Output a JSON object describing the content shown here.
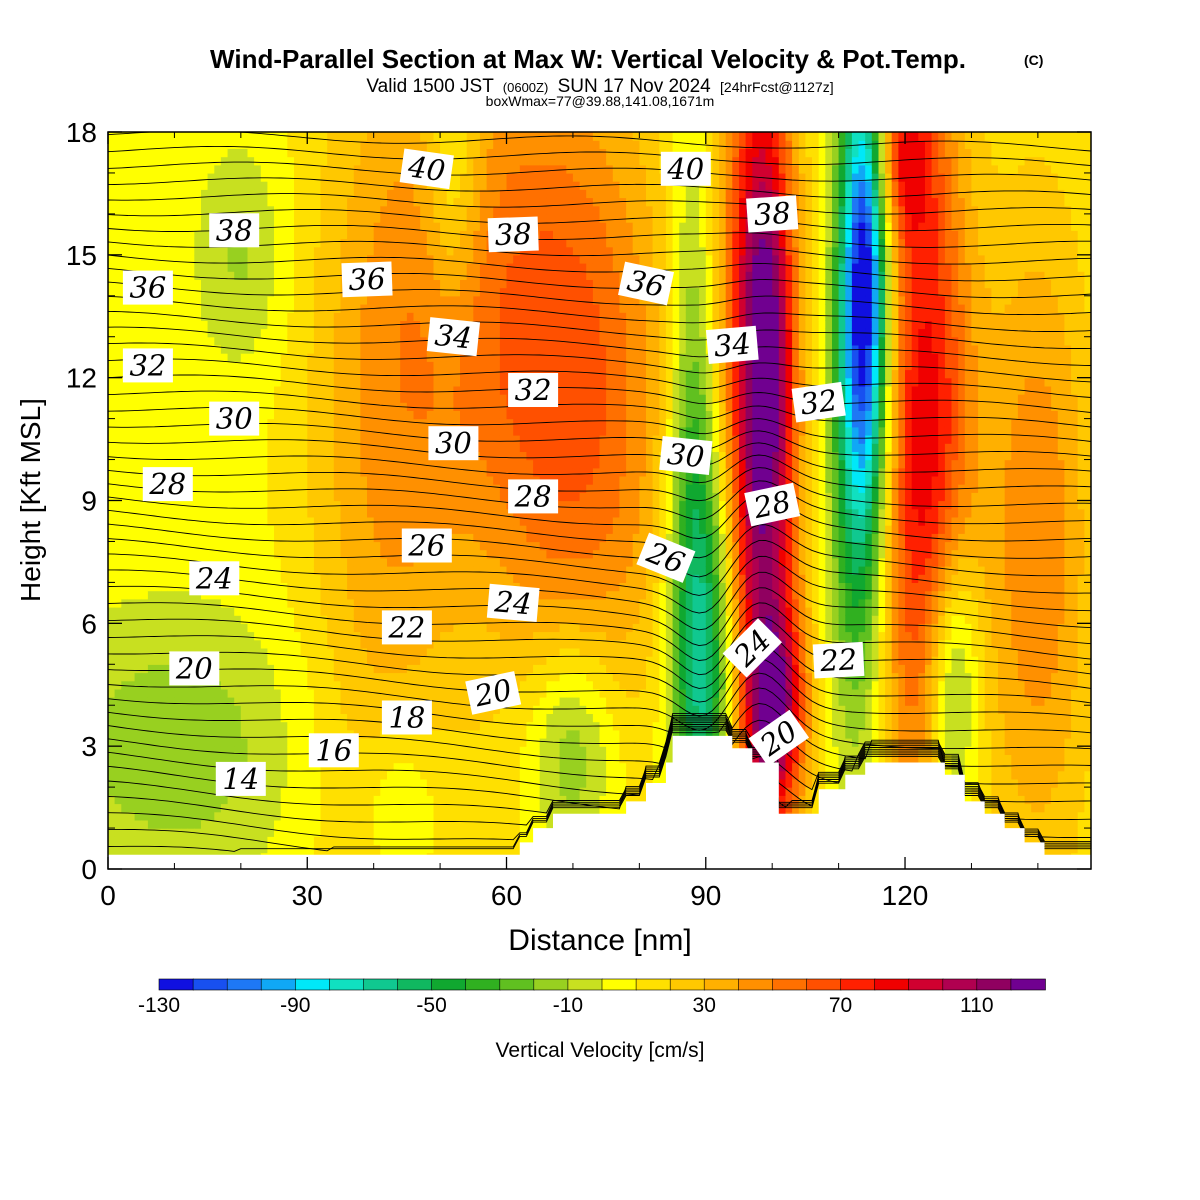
{
  "header": {
    "title_main": "Wind-Parallel Section at Max W: Vertical Velocity & Pot.Temp.",
    "title_copyright": "(C)",
    "valid_prefix": "Valid 1500 JST",
    "valid_utc": "(0600Z)",
    "valid_date": "SUN 17 Nov 2024",
    "valid_fcst": "[24hrFcst@1127z]",
    "box_info": "boxWmax=77@39.88,141.08,1671m"
  },
  "chart_data": {
    "type": "heatmap",
    "xlabel": "Distance [nm]",
    "ylabel": "Height [Kft MSL]",
    "xlim": [
      0,
      148
    ],
    "ylim": [
      0,
      18
    ],
    "x_ticks": [
      0,
      30,
      60,
      90,
      120
    ],
    "y_ticks": [
      0,
      3,
      6,
      9,
      12,
      15,
      18
    ],
    "colorbar": {
      "label": "Vertical Velocity [cm/s]",
      "min": -130,
      "max": 130,
      "step": 10,
      "tick_labels": [
        -130,
        -90,
        -50,
        -10,
        30,
        70,
        110
      ],
      "colors": [
        "#1010e0",
        "#1850f0",
        "#1e78f5",
        "#10a8f5",
        "#00e8f8",
        "#10e0c0",
        "#10c890",
        "#10b860",
        "#10a830",
        "#30b020",
        "#60c020",
        "#98d020",
        "#c8e020",
        "#ffff00",
        "#ffe000",
        "#ffc800",
        "#ffb000",
        "#ff9000",
        "#ff7000",
        "#ff5000",
        "#ff2000",
        "#f00000",
        "#d00030",
        "#b00050",
        "#900060",
        "#700090"
      ]
    },
    "terrain_profile": [
      [
        0,
        0.35
      ],
      [
        62,
        0.35
      ],
      [
        62,
        0.65
      ],
      [
        64,
        0.65
      ],
      [
        64,
        1.0
      ],
      [
        67,
        1.0
      ],
      [
        67,
        1.35
      ],
      [
        78,
        1.35
      ],
      [
        78,
        1.65
      ],
      [
        81,
        1.65
      ],
      [
        81,
        2.1
      ],
      [
        84,
        2.1
      ],
      [
        84,
        2.6
      ],
      [
        85,
        2.6
      ],
      [
        85,
        3.25
      ],
      [
        94,
        3.25
      ],
      [
        94,
        2.95
      ],
      [
        97,
        2.95
      ],
      [
        97,
        2.6
      ],
      [
        101,
        2.6
      ],
      [
        101,
        1.35
      ],
      [
        107,
        1.35
      ],
      [
        107,
        1.95
      ],
      [
        111,
        1.95
      ],
      [
        111,
        2.3
      ],
      [
        114,
        2.3
      ],
      [
        114,
        2.6
      ],
      [
        126,
        2.6
      ],
      [
        126,
        2.3
      ],
      [
        129,
        2.3
      ],
      [
        129,
        1.65
      ],
      [
        132,
        1.65
      ],
      [
        132,
        1.35
      ],
      [
        135,
        1.35
      ],
      [
        135,
        1.0
      ],
      [
        138,
        1.0
      ],
      [
        138,
        0.65
      ],
      [
        141,
        0.65
      ],
      [
        141,
        0.35
      ],
      [
        148,
        0.35
      ]
    ],
    "wind_field": [
      {
        "x": 98,
        "y": 9,
        "sx": 4,
        "sy": 9,
        "w": 110
      },
      {
        "x": 99.5,
        "y": 13,
        "sx": 2.5,
        "sy": 3,
        "w": 40
      },
      {
        "x": 101,
        "y": 4,
        "sx": 3,
        "sy": 1.5,
        "w": 60
      },
      {
        "x": 123,
        "y": 10,
        "sx": 5,
        "sy": 7,
        "w": 80
      },
      {
        "x": 119,
        "y": 17.5,
        "sx": 3.5,
        "sy": 1.5,
        "w": 50
      },
      {
        "x": 56,
        "y": 14,
        "sx": 12,
        "sy": 5,
        "w": 35
      },
      {
        "x": 72,
        "y": 11,
        "sx": 10,
        "sy": 6,
        "w": 45
      },
      {
        "x": 41,
        "y": 9,
        "sx": 8,
        "sy": 8,
        "w": 25
      },
      {
        "x": 140,
        "y": 8,
        "sx": 6,
        "sy": 6,
        "w": 40
      },
      {
        "x": 114,
        "y": 15,
        "sx": 2.5,
        "sy": 4,
        "w": -120
      },
      {
        "x": 113,
        "y": 10,
        "sx": 3,
        "sy": 5,
        "w": -60
      },
      {
        "x": 91,
        "y": 5,
        "sx": 4,
        "sy": 4,
        "w": -70
      },
      {
        "x": 88,
        "y": 10,
        "sx": 2.5,
        "sy": 6,
        "w": -40
      },
      {
        "x": 127,
        "y": 4.5,
        "sx": 3,
        "sy": 2.5,
        "w": -60
      },
      {
        "x": 70,
        "y": 3,
        "sx": 5,
        "sy": 2,
        "w": -40
      },
      {
        "x": 52,
        "y": 17,
        "sx": 3,
        "sy": 2.5,
        "w": -30
      },
      {
        "x": 20,
        "y": 15,
        "sx": 5,
        "sy": 2,
        "w": -20
      },
      {
        "x": 10,
        "y": 3,
        "sx": 14,
        "sy": 2.5,
        "w": -25
      },
      {
        "x": 44,
        "y": 1.5,
        "sx": 4,
        "sy": 1.5,
        "w": -20
      }
    ],
    "theta_labels": [
      {
        "value": "40",
        "x": 48,
        "y": 17.1,
        "rot": 8
      },
      {
        "value": "40",
        "x": 87,
        "y": 17.1,
        "rot": 0
      },
      {
        "value": "38",
        "x": 19,
        "y": 15.6,
        "rot": 0
      },
      {
        "value": "38",
        "x": 61,
        "y": 15.5,
        "rot": -2
      },
      {
        "value": "38",
        "x": 100,
        "y": 16.0,
        "rot": -4
      },
      {
        "value": "36",
        "x": 6,
        "y": 14.2,
        "rot": 0
      },
      {
        "value": "36",
        "x": 39,
        "y": 14.4,
        "rot": -2
      },
      {
        "value": "36",
        "x": 81,
        "y": 14.3,
        "rot": 12
      },
      {
        "value": "34",
        "x": 52,
        "y": 13.0,
        "rot": 6
      },
      {
        "value": "34",
        "x": 94,
        "y": 12.8,
        "rot": -5
      },
      {
        "value": "32",
        "x": 6,
        "y": 12.3,
        "rot": 0
      },
      {
        "value": "32",
        "x": 64,
        "y": 11.7,
        "rot": 0
      },
      {
        "value": "32",
        "x": 107,
        "y": 11.4,
        "rot": -8
      },
      {
        "value": "30",
        "x": 19,
        "y": 11.0,
        "rot": 0
      },
      {
        "value": "30",
        "x": 52,
        "y": 10.4,
        "rot": 0
      },
      {
        "value": "30",
        "x": 87,
        "y": 10.1,
        "rot": 6
      },
      {
        "value": "28",
        "x": 9,
        "y": 9.4,
        "rot": 0
      },
      {
        "value": "28",
        "x": 64,
        "y": 9.1,
        "rot": 0
      },
      {
        "value": "28",
        "x": 100,
        "y": 8.9,
        "rot": -12
      },
      {
        "value": "26",
        "x": 48,
        "y": 7.9,
        "rot": 0
      },
      {
        "value": "26",
        "x": 84,
        "y": 7.6,
        "rot": 22
      },
      {
        "value": "24",
        "x": 16,
        "y": 7.1,
        "rot": 0
      },
      {
        "value": "24",
        "x": 61,
        "y": 6.5,
        "rot": 5
      },
      {
        "value": "24",
        "x": 97,
        "y": 5.4,
        "rot": -45
      },
      {
        "value": "22",
        "x": 45,
        "y": 5.9,
        "rot": 0
      },
      {
        "value": "22",
        "x": 110,
        "y": 5.1,
        "rot": -3
      },
      {
        "value": "20",
        "x": 13,
        "y": 4.9,
        "rot": 0
      },
      {
        "value": "20",
        "x": 58,
        "y": 4.3,
        "rot": -12
      },
      {
        "value": "20",
        "x": 101,
        "y": 3.2,
        "rot": -35
      },
      {
        "value": "18",
        "x": 45,
        "y": 3.7,
        "rot": 0
      },
      {
        "value": "16",
        "x": 34,
        "y": 2.9,
        "rot": 0
      },
      {
        "value": "14",
        "x": 20,
        "y": 2.2,
        "rot": 0
      }
    ]
  }
}
